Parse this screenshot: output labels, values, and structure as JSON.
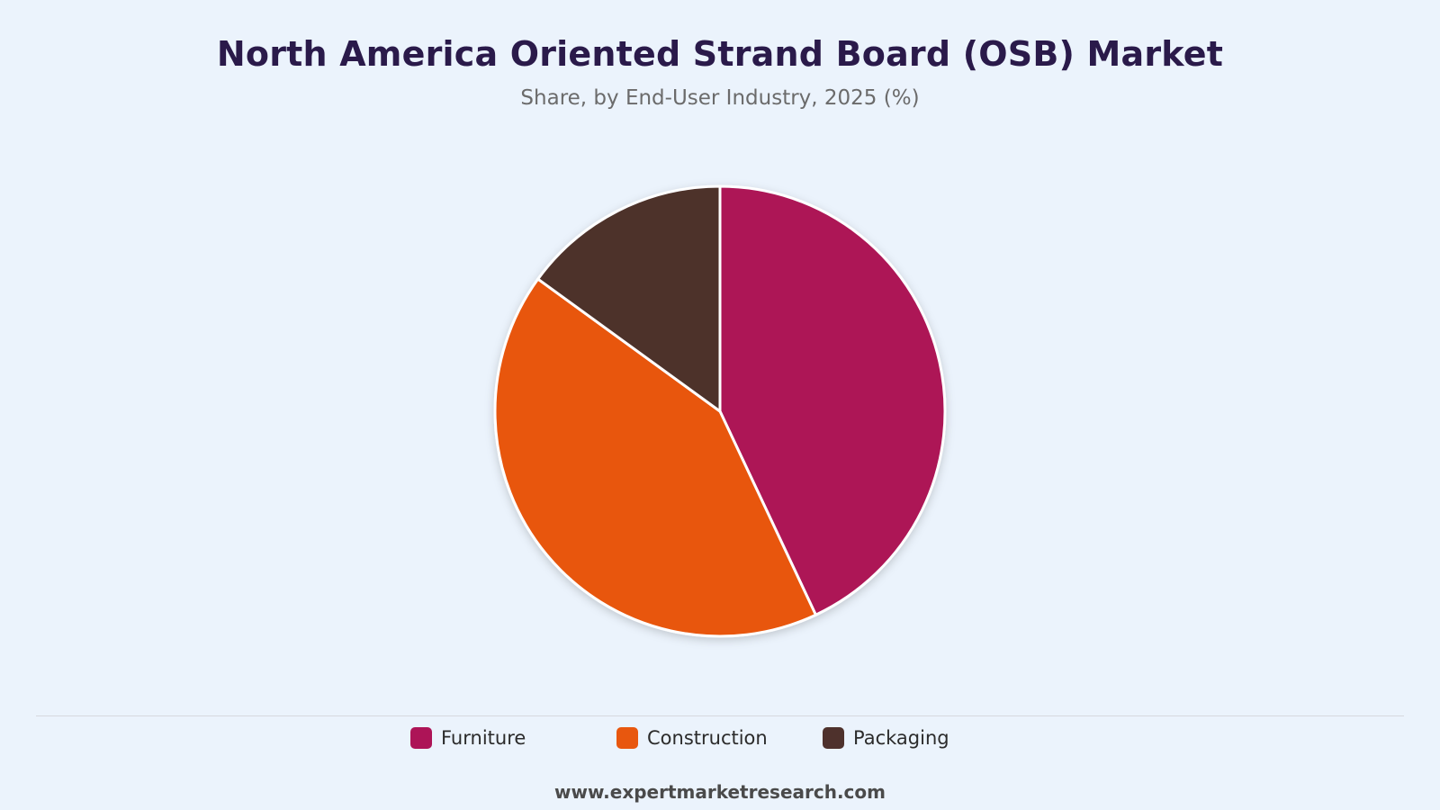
{
  "header": {
    "title": "North America Oriented Strand Board (OSB) Market",
    "subtitle": "Share, by End-User Industry, 2025 (%)"
  },
  "chart_data": {
    "type": "pie",
    "categories": [
      "Furniture",
      "Construction",
      "Packaging"
    ],
    "values": [
      43,
      42,
      15
    ],
    "colors": [
      "#ad1457",
      "#e8570e",
      "#4e312c"
    ],
    "legend_position": "bottom",
    "start": "top, clockwise"
  },
  "legend": {
    "items": [
      {
        "label": "Furniture",
        "color": "#ad1457"
      },
      {
        "label": "Construction",
        "color": "#e8570e"
      },
      {
        "label": "Packaging",
        "color": "#4e312c"
      }
    ]
  },
  "footer": {
    "source": "www.expertmarketresearch.com"
  }
}
